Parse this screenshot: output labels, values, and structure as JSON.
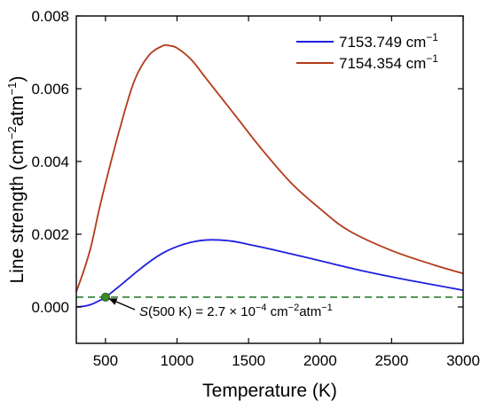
{
  "chart_data": {
    "type": "line",
    "xlabel": "Temperature (K)",
    "ylabel": {
      "main": "Line strength (cm",
      "sup1": "−2",
      "mid": "atm",
      "sup2": "−1",
      "end": ")"
    },
    "xlim": [
      296,
      3000
    ],
    "ylim": [
      -0.001,
      0.008
    ],
    "xticks": [
      500,
      1000,
      1500,
      2000,
      2500,
      3000
    ],
    "xtick_labels": [
      "500",
      "1000",
      "1500",
      "2000",
      "2500",
      "3000"
    ],
    "yticks": [
      0.0,
      0.002,
      0.004,
      0.006,
      0.008
    ],
    "ytick_labels": [
      "0.000",
      "0.002",
      "0.004",
      "0.006",
      "0.008"
    ],
    "legend_position": "top-right",
    "series": [
      {
        "name": "7153.749 cm",
        "name_sup": "−1",
        "color": "#1f1fe0",
        "x": [
          296,
          350,
          400,
          450,
          500,
          600,
          700,
          800,
          900,
          1000,
          1100,
          1200,
          1300,
          1400,
          1500,
          1700,
          2000,
          2300,
          2600,
          3000
        ],
        "y": [
          0.0,
          2e-05,
          7e-05,
          0.00016,
          0.00027,
          0.00058,
          0.00091,
          0.00122,
          0.00148,
          0.00166,
          0.00178,
          0.00184,
          0.00184,
          0.0018,
          0.00172,
          0.00155,
          0.00127,
          0.00099,
          0.00075,
          0.00046
        ]
      },
      {
        "name": "7154.354 cm",
        "name_sup": "−1",
        "color": "#b33a1a",
        "x": [
          296,
          350,
          400,
          450,
          500,
          600,
          700,
          800,
          900,
          950,
          1000,
          1100,
          1200,
          1400,
          1600,
          1800,
          2000,
          2200,
          2500,
          2800,
          3000
        ],
        "y": [
          0.00042,
          0.00102,
          0.00168,
          0.00258,
          0.0034,
          0.0049,
          0.0062,
          0.0069,
          0.00718,
          0.00718,
          0.00712,
          0.0068,
          0.0063,
          0.0053,
          0.0043,
          0.0034,
          0.0027,
          0.0021,
          0.00155,
          0.00115,
          0.00092
        ]
      }
    ],
    "threshold": {
      "y": 0.00027,
      "color": "#2e7d32",
      "style": "dashed"
    },
    "marker": {
      "x": 500,
      "y": 0.00027,
      "color": "#3a8a2a"
    },
    "annotation": {
      "S": "S",
      "cond": "(500 K) = 2.7 × 10",
      "exp": "−4",
      "unit1": " cm",
      "exp2": "−2",
      "unit2": "atm",
      "exp3": "−1"
    }
  }
}
